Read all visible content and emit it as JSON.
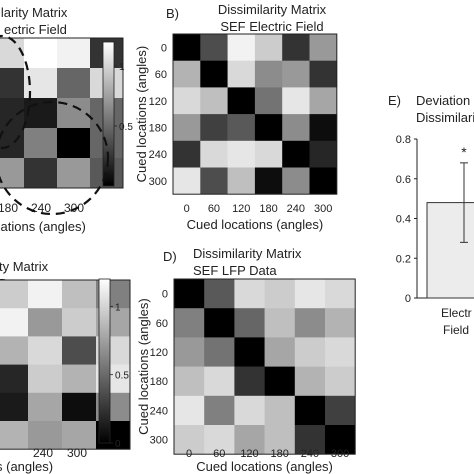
{
  "chart_data": [
    {
      "type": "heatmap",
      "panel": "",
      "title_lines": [
        "ilarity Matrix",
        "ectric Field"
      ],
      "visible_x_ticks": [
        "180",
        "240",
        "300"
      ],
      "xlabel": "cations (angles)",
      "colorbar_ticks": [
        "1",
        "0.5"
      ],
      "colorbar_range": [
        0,
        1.2
      ],
      "annotation": "dashed ellipse outlines",
      "cells": [
        [
          0.85,
          1.0,
          0.95,
          0.2
        ],
        [
          0.2,
          0.9,
          0.4,
          0.85
        ],
        [
          0.15,
          0.1,
          0.55,
          0.4
        ],
        [
          0.15,
          0.5,
          0.0,
          0.4
        ],
        [
          0.6,
          0.2,
          0.6,
          0.35
        ]
      ]
    },
    {
      "type": "heatmap",
      "panel": "B)",
      "title_lines": [
        "Dissimilarity Matrix",
        "SEF Electric Field"
      ],
      "categories": [
        "0",
        "60",
        "120",
        "180",
        "240",
        "300"
      ],
      "xlabel": "Cued locations (angles)",
      "ylabel": "Cued locations (angles)",
      "cells": [
        [
          0.0,
          0.3,
          0.95,
          0.8,
          0.2,
          0.6
        ],
        [
          0.7,
          0.0,
          0.85,
          0.55,
          0.6,
          0.2
        ],
        [
          0.85,
          0.75,
          0.0,
          0.45,
          0.9,
          0.65
        ],
        [
          0.6,
          0.25,
          0.35,
          0.0,
          0.55,
          0.05
        ],
        [
          0.2,
          0.85,
          0.9,
          0.85,
          0.0,
          0.15
        ],
        [
          0.9,
          0.3,
          0.75,
          0.05,
          0.55,
          0.0
        ]
      ]
    },
    {
      "type": "heatmap",
      "panel": "",
      "title_lines": [
        "ty Matrix",
        "Data"
      ],
      "visible_x_ticks": [
        "240",
        "300"
      ],
      "xlabel": "s (angles)",
      "colorbar_ticks": [
        "1",
        "0.5",
        "0"
      ],
      "colorbar_range": [
        0,
        1.2
      ],
      "cells": [
        [
          0.85,
          0.8,
          0.95,
          0.75,
          0.5
        ],
        [
          0.8,
          0.95,
          0.6,
          0.8,
          0.65
        ],
        [
          0.85,
          0.7,
          0.85,
          0.3,
          0.85
        ],
        [
          0.1,
          0.15,
          0.8,
          0.7,
          0.9
        ],
        [
          0.4,
          0.1,
          0.65,
          0.05,
          0.55
        ],
        [
          0.9,
          0.7,
          0.6,
          0.65,
          0.0
        ]
      ]
    },
    {
      "type": "heatmap",
      "panel": "D)",
      "title_lines": [
        "Dissimilarity Matrix",
        "SEF LFP Data"
      ],
      "categories": [
        "0",
        "60",
        "120",
        "180",
        "240",
        "300"
      ],
      "xlabel": "Cued locations (angles)",
      "ylabel": "Cued locations (angles)",
      "cells": [
        [
          0.0,
          0.35,
          0.85,
          0.8,
          0.9,
          0.85
        ],
        [
          0.5,
          0.0,
          0.4,
          0.75,
          0.55,
          0.7
        ],
        [
          0.6,
          0.45,
          0.0,
          0.65,
          0.8,
          0.85
        ],
        [
          0.75,
          0.85,
          0.2,
          0.0,
          0.7,
          0.8
        ],
        [
          0.9,
          0.5,
          0.85,
          0.75,
          0.0,
          0.25
        ],
        [
          0.8,
          0.85,
          0.65,
          0.75,
          0.2,
          0.0
        ]
      ]
    },
    {
      "type": "bar",
      "panel": "E)",
      "title_lines": [
        "Deviation",
        "Dissimilari"
      ],
      "categories": [
        "Electr Field"
      ],
      "category_lines": [
        "Electr",
        "Field"
      ],
      "values": [
        0.48
      ],
      "error": [
        0.2
      ],
      "annotation": "*",
      "ylim": [
        0,
        0.8
      ],
      "yticks": [
        "0",
        "0.2",
        "0.4",
        "0.6",
        "0.8"
      ]
    }
  ]
}
